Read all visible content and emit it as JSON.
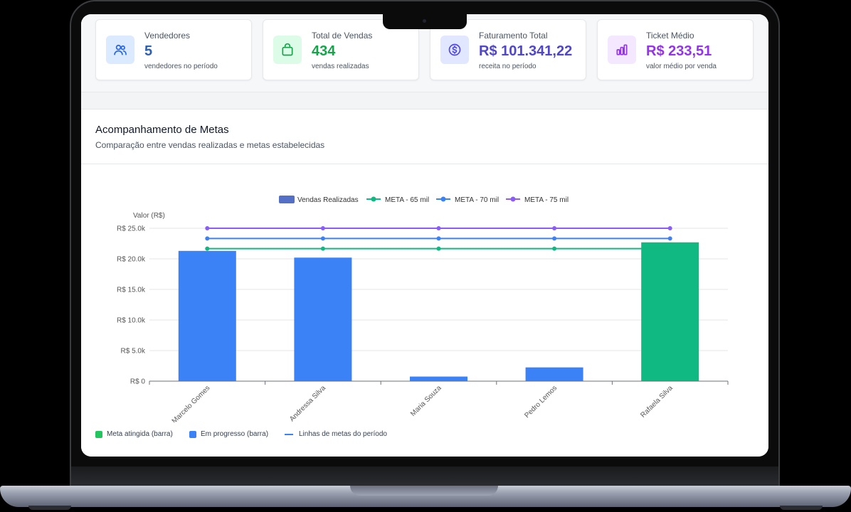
{
  "stats": [
    {
      "label": "Vendedores",
      "value": "5",
      "sub": "vendedores no período",
      "icon": "users-icon",
      "value_color": "#2f5fb3",
      "icon_bg": "#dbeafe",
      "icon_color": "#2563eb"
    },
    {
      "label": "Total de Vendas",
      "value": "434",
      "sub": "vendas realizadas",
      "icon": "shopping-bag-icon",
      "value_color": "#16a34a",
      "icon_bg": "#dcfce7",
      "icon_color": "#16a34a"
    },
    {
      "label": "Faturamento Total",
      "value": "R$ 101.341,22",
      "sub": "receita no período",
      "icon": "dollar-circle-icon",
      "value_color": "#4f46c8",
      "icon_bg": "#e0e7ff",
      "icon_color": "#4f46e5"
    },
    {
      "label": "Ticket Médio",
      "value": "R$ 233,51",
      "sub": "valor médio por venda",
      "icon": "bar-chart-icon",
      "value_color": "#9333ea",
      "icon_bg": "#f3e8ff",
      "icon_color": "#9333ea"
    }
  ],
  "panel": {
    "title": "Acompanhamento de Metas",
    "subtitle": "Comparação entre vendas realizadas e metas estabelecidas"
  },
  "chart_data": {
    "type": "bar",
    "ylabel": "Valor (R$)",
    "ylim": [
      0,
      25000
    ],
    "yticks": [
      0,
      5000,
      10000,
      15000,
      20000,
      25000
    ],
    "ytick_labels": [
      "R$ 0",
      "R$ 5.0k",
      "R$ 10.0k",
      "R$ 15.0k",
      "R$ 20.0k",
      "R$ 25.0k"
    ],
    "categories": [
      "Marcelo Gomes",
      "Andressa Silva",
      "Maria Souza",
      "Pedro Lemos",
      "Rafaela Silva"
    ],
    "bars": {
      "name": "Vendas Realizadas",
      "values": [
        21300,
        20200,
        750,
        2250,
        22700
      ],
      "colors": [
        "#3b82f6",
        "#3b82f6",
        "#3b82f6",
        "#3b82f6",
        "#10b981"
      ],
      "legend_color": "#5470c6"
    },
    "lines": [
      {
        "name": "META - 65 mil",
        "value": 21667,
        "color": "#10b981"
      },
      {
        "name": "META - 70 mil",
        "value": 23333,
        "color": "#3b82f6"
      },
      {
        "name": "META - 75 mil",
        "value": 25000,
        "color": "#8b5cf6"
      }
    ],
    "grid": true,
    "legend_position": "top-center"
  },
  "footer_legend": [
    {
      "label": "Meta atingida (barra)",
      "type": "square",
      "color": "#22c55e"
    },
    {
      "label": "Em progresso (barra)",
      "type": "square",
      "color": "#3b82f6"
    },
    {
      "label": "Linhas de metas do período",
      "type": "line",
      "color": "#3b82f6"
    }
  ]
}
